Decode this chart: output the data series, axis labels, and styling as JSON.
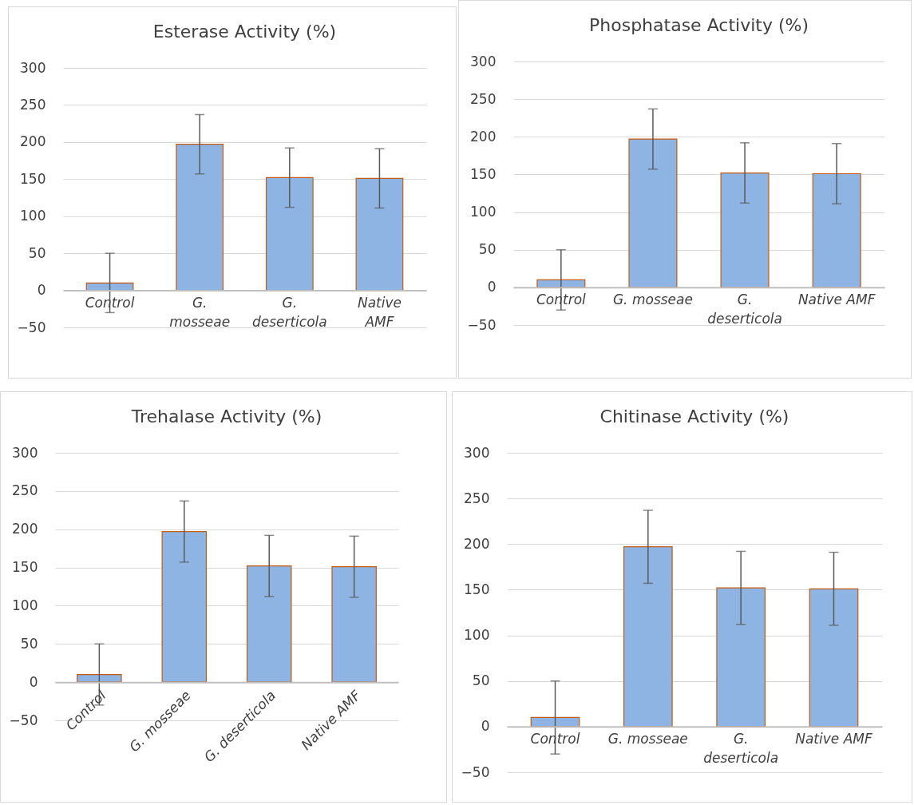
{
  "chart_data": [
    {
      "type": "bar",
      "title": "Esterase Activity (%)",
      "categories": [
        "Control",
        "G. mosseae",
        "G. deserticola",
        "Native AMF"
      ],
      "values": [
        10,
        197,
        152,
        151
      ],
      "errors": [
        40,
        40,
        40,
        40
      ],
      "color": "#8db4e2",
      "ylim": [
        -50,
        300
      ],
      "yticks": [
        -50,
        0,
        50,
        100,
        150,
        200,
        250,
        300
      ],
      "grid": "y"
    },
    {
      "type": "bar",
      "title": "Phosphatase Activity (%)",
      "categories": [
        "Control",
        "G. mosseae",
        "G. deserticola",
        "Native AMF"
      ],
      "values": [
        10,
        197,
        152,
        151
      ],
      "errors": [
        40,
        40,
        40,
        40
      ],
      "color": "#8db4e2",
      "ylim": [
        -50,
        300
      ],
      "yticks": [
        -50,
        0,
        50,
        100,
        150,
        200,
        250,
        300
      ],
      "grid": "y"
    },
    {
      "type": "bar",
      "title": "Trehalase Activity (%)",
      "categories": [
        "Control",
        "G. mosseae",
        "G. deserticola",
        "Native AMF"
      ],
      "values": [
        10,
        197,
        152,
        151
      ],
      "errors": [
        40,
        40,
        40,
        40
      ],
      "color": "#8db4e2",
      "ylim": [
        -50,
        300
      ],
      "yticks": [
        -50,
        0,
        50,
        100,
        150,
        200,
        250,
        300
      ],
      "grid": "y"
    },
    {
      "type": "bar",
      "title": "Chitinase Activity (%)",
      "categories": [
        "Control",
        "G. mosseae",
        "G. deserticola",
        "Native AMF"
      ],
      "values": [
        10,
        197,
        152,
        151
      ],
      "errors": [
        40,
        40,
        40,
        40
      ],
      "color": "#8db4e2",
      "ylim": [
        -50,
        300
      ],
      "yticks": [
        -50,
        0,
        50,
        100,
        150,
        200,
        250,
        300
      ],
      "grid": "y"
    }
  ]
}
